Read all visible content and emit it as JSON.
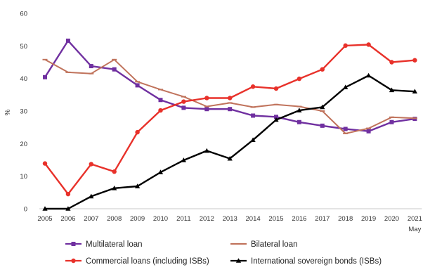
{
  "chart_data": {
    "type": "line",
    "title": "",
    "xlabel": "",
    "ylabel": "%",
    "x": [
      "2005",
      "2006",
      "2007",
      "2008",
      "2009",
      "2010",
      "2011",
      "2012",
      "2013",
      "2014",
      "2015",
      "2016",
      "2017",
      "2018",
      "2019",
      "2020",
      "2021"
    ],
    "x_sublabel_last": "May",
    "ylim": [
      0,
      60
    ],
    "yticks": [
      0,
      10,
      20,
      30,
      40,
      50,
      60
    ],
    "grid": false,
    "legend_position": "bottom",
    "series": [
      {
        "name": "Multilateral loan",
        "color": "#7030a0",
        "marker": "square",
        "values": [
          40.4,
          51.6,
          43.8,
          42.8,
          37.9,
          33.4,
          31.0,
          30.6,
          30.6,
          28.6,
          28.2,
          26.6,
          25.5,
          24.5,
          23.8,
          26.6,
          27.6
        ]
      },
      {
        "name": "Bilateral loan",
        "color": "#c0735c",
        "marker": "dash",
        "values": [
          45.8,
          41.9,
          41.5,
          45.8,
          39.0,
          36.6,
          34.4,
          31.4,
          32.5,
          31.2,
          32.0,
          31.4,
          30.0,
          23.1,
          24.7,
          28.1,
          27.8
        ]
      },
      {
        "name": "Commercial loans (including ISBs)",
        "color": "#e8312a",
        "marker": "circle",
        "values": [
          13.9,
          4.5,
          13.7,
          11.4,
          23.5,
          30.2,
          32.9,
          34.0,
          34.0,
          37.5,
          36.9,
          39.9,
          42.8,
          50.1,
          50.4,
          45.0,
          45.6
        ]
      },
      {
        "name": "International sovereign bonds (ISBs)",
        "color": "#000000",
        "marker": "triangle",
        "values": [
          0.0,
          0.0,
          3.8,
          6.3,
          6.9,
          11.2,
          14.9,
          17.8,
          15.4,
          21.1,
          27.3,
          30.2,
          31.2,
          37.3,
          40.9,
          36.4,
          36.0
        ]
      }
    ]
  }
}
